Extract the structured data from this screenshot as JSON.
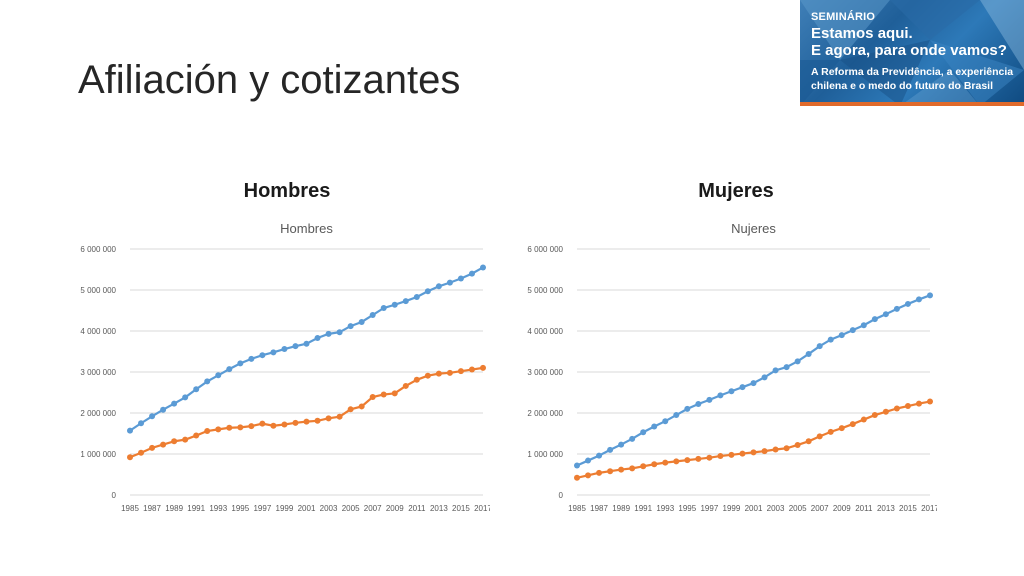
{
  "slide": {
    "title": "Afiliación y cotizantes"
  },
  "banner": {
    "line1": "SEMINÁRIO",
    "line2": "Estamos aqui.",
    "line3": "E agora, para onde vamos?",
    "line4": "A Reforma da Previdência, a experiência",
    "line5": "chilena e o medo do futuro do Brasil",
    "accent_color": "#e06a2b"
  },
  "panels": [
    {
      "heading": "Hombres"
    },
    {
      "heading": "Mujeres"
    }
  ],
  "chart_data": [
    {
      "type": "line",
      "title": "Hombres",
      "x": [
        1985,
        1986,
        1987,
        1988,
        1989,
        1990,
        1991,
        1992,
        1993,
        1994,
        1995,
        1996,
        1997,
        1998,
        1999,
        2000,
        2001,
        2002,
        2003,
        2004,
        2005,
        2006,
        2007,
        2008,
        2009,
        2010,
        2011,
        2012,
        2013,
        2014,
        2015,
        2016,
        2017
      ],
      "x_tick_labels": [
        "1985",
        "1987",
        "1989",
        "1991",
        "1993",
        "1995",
        "1997",
        "1999",
        "2001",
        "2003",
        "2005",
        "2007",
        "2009",
        "2011",
        "2013",
        "2015",
        "2017"
      ],
      "y_tick_labels": [
        "0",
        "1 000 000",
        "2 000 000",
        "3 000 000",
        "4 000 000",
        "5 000 000",
        "6 000 000"
      ],
      "ylim": [
        0,
        6000000
      ],
      "grid": true,
      "series": [
        {
          "color": "#5b9bd5",
          "values": [
            1570000,
            1750000,
            1920000,
            2080000,
            2230000,
            2380000,
            2580000,
            2770000,
            2920000,
            3070000,
            3210000,
            3320000,
            3410000,
            3480000,
            3560000,
            3630000,
            3690000,
            3830000,
            3930000,
            3970000,
            4120000,
            4220000,
            4390000,
            4560000,
            4640000,
            4730000,
            4830000,
            4970000,
            5090000,
            5180000,
            5280000,
            5400000,
            5550000
          ]
        },
        {
          "color": "#ed7d31",
          "values": [
            920000,
            1030000,
            1150000,
            1230000,
            1310000,
            1350000,
            1450000,
            1560000,
            1600000,
            1640000,
            1650000,
            1680000,
            1740000,
            1690000,
            1720000,
            1760000,
            1790000,
            1810000,
            1870000,
            1910000,
            2090000,
            2160000,
            2390000,
            2450000,
            2480000,
            2660000,
            2810000,
            2910000,
            2960000,
            2980000,
            3020000,
            3060000,
            3100000
          ]
        }
      ]
    },
    {
      "type": "line",
      "title": "Nujeres",
      "x": [
        1985,
        1986,
        1987,
        1988,
        1989,
        1990,
        1991,
        1992,
        1993,
        1994,
        1995,
        1996,
        1997,
        1998,
        1999,
        2000,
        2001,
        2002,
        2003,
        2004,
        2005,
        2006,
        2007,
        2008,
        2009,
        2010,
        2011,
        2012,
        2013,
        2014,
        2015,
        2016,
        2017
      ],
      "x_tick_labels": [
        "1985",
        "1987",
        "1989",
        "1991",
        "1993",
        "1995",
        "1997",
        "1999",
        "2001",
        "2003",
        "2005",
        "2007",
        "2009",
        "2011",
        "2013",
        "2015",
        "2017"
      ],
      "y_tick_labels": [
        "0",
        "1 000 000",
        "2 000 000",
        "3 000 000",
        "4 000 000",
        "5 000 000",
        "6 000 000"
      ],
      "ylim": [
        0,
        6000000
      ],
      "grid": true,
      "series": [
        {
          "color": "#5b9bd5",
          "values": [
            720000,
            840000,
            960000,
            1100000,
            1230000,
            1370000,
            1530000,
            1670000,
            1800000,
            1950000,
            2100000,
            2220000,
            2320000,
            2430000,
            2530000,
            2630000,
            2730000,
            2870000,
            3040000,
            3120000,
            3260000,
            3440000,
            3630000,
            3790000,
            3900000,
            4020000,
            4140000,
            4290000,
            4410000,
            4540000,
            4660000,
            4770000,
            4870000
          ]
        },
        {
          "color": "#ed7d31",
          "values": [
            420000,
            480000,
            540000,
            580000,
            620000,
            650000,
            700000,
            750000,
            790000,
            820000,
            850000,
            880000,
            910000,
            950000,
            980000,
            1010000,
            1040000,
            1070000,
            1110000,
            1140000,
            1220000,
            1310000,
            1430000,
            1540000,
            1630000,
            1730000,
            1840000,
            1950000,
            2030000,
            2110000,
            2170000,
            2230000,
            2280000
          ]
        }
      ]
    }
  ]
}
